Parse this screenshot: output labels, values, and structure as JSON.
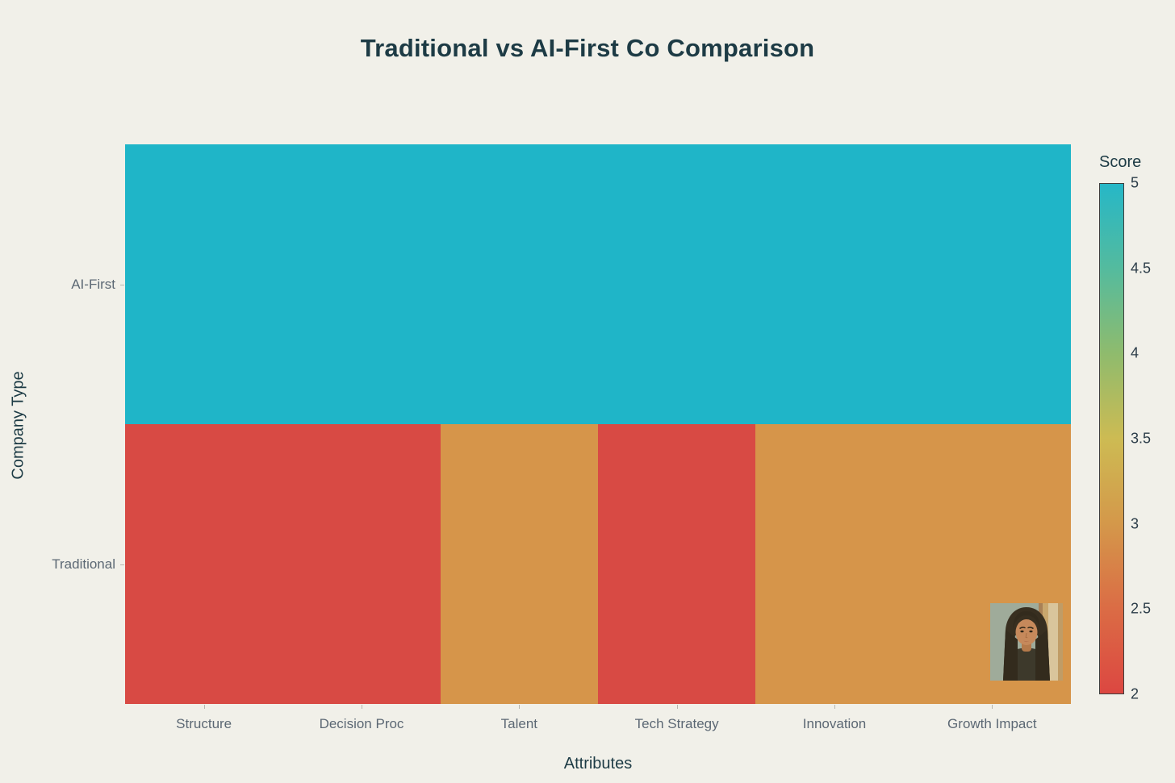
{
  "title": "Traditional vs AI-First Co Comparison",
  "chart_data": {
    "type": "heatmap",
    "categories": [
      "Structure",
      "Decision Proc",
      "Talent",
      "Tech Strategy",
      "Innovation",
      "Growth Impact"
    ],
    "rows": [
      "AI-First",
      "Traditional"
    ],
    "series": [
      {
        "name": "AI-First",
        "values": [
          5,
          5,
          5,
          5,
          5,
          5
        ]
      },
      {
        "name": "Traditional",
        "values": [
          2,
          2,
          3,
          2,
          3,
          3
        ]
      }
    ],
    "title": "Traditional vs AI-First Co Comparison",
    "xlabel": "Attributes",
    "ylabel": "Company Type",
    "colorbar": {
      "title": "Score",
      "min": 2,
      "max": 5,
      "ticks": [
        "5",
        "4.5",
        "4",
        "3.5",
        "3",
        "2.5",
        "2"
      ]
    },
    "legend_position": "right",
    "grid": false
  },
  "colors": {
    "background": "#f1f0e9",
    "title_text": "#1d3b45",
    "axis_title_text": "#1d3b45",
    "tick_text": "#5c6874",
    "colorbar_tick_text": "#2b3c48",
    "value_colors": {
      "2": "#d84a44",
      "3": "#d6954a",
      "5": "#1fb5c8"
    },
    "colorbar_gradient": [
      "#26b7c7",
      "#54bb9e",
      "#8fbb6d",
      "#cdbb53",
      "#d4984a",
      "#db6c45",
      "#dc4741"
    ]
  },
  "overlay": {
    "avatar_icon": "person-portrait-illustration"
  }
}
